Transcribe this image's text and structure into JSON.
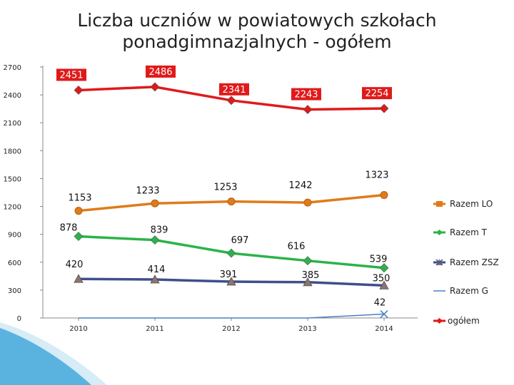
{
  "slide": {
    "title_line1": "Liczba uczniów w powiatowych szkołach",
    "title_line2": "ponadgimnazjalnych - ogółem"
  },
  "colors": {
    "ogolem": "#e01a1a",
    "razem_lo": "#e07b1a",
    "razem_t": "#2bb34a",
    "razem_zsz": "#3e4f8c",
    "razem_g": "#4a80c4",
    "label_box": "#e01a1a"
  },
  "chart_data": {
    "type": "line",
    "title": "Liczba uczniów w powiatowych szkołach ponadgimnazjalnych - ogółem",
    "x": [
      "2010",
      "2011",
      "2012",
      "2013",
      "2014"
    ],
    "ylim": [
      0,
      2700
    ],
    "yticks": [
      "0",
      "300",
      "600",
      "900",
      "1200",
      "1500",
      "1800",
      "2100",
      "2400",
      "2700"
    ],
    "grid": false,
    "legend_position": "right",
    "series": [
      {
        "name": "Razem LO",
        "values": [
          1153,
          1233,
          1253,
          1242,
          1323
        ],
        "labels": [
          "1153",
          "1233",
          "1253",
          "1242",
          "1323"
        ],
        "marker": "circle"
      },
      {
        "name": "Razem T",
        "values": [
          878,
          839,
          697,
          616,
          539
        ],
        "labels": [
          "878",
          "839",
          "697",
          "616",
          "539"
        ],
        "marker": "diamond"
      },
      {
        "name": "Razem ZSZ",
        "values": [
          420,
          414,
          391,
          385,
          350
        ],
        "labels": [
          "420",
          "414",
          "391",
          "385",
          "350"
        ],
        "marker": "triangle"
      },
      {
        "name": "Razem G",
        "values": [
          0,
          0,
          0,
          0,
          42
        ],
        "labels": [
          "",
          "",
          "",
          "",
          "42"
        ],
        "marker": "x"
      },
      {
        "name": "ogółem",
        "values": [
          2451,
          2486,
          2341,
          2243,
          2254
        ],
        "labels": [
          "2451",
          "2486",
          "2341",
          "2243",
          "2254"
        ],
        "marker": "diamond"
      }
    ]
  }
}
